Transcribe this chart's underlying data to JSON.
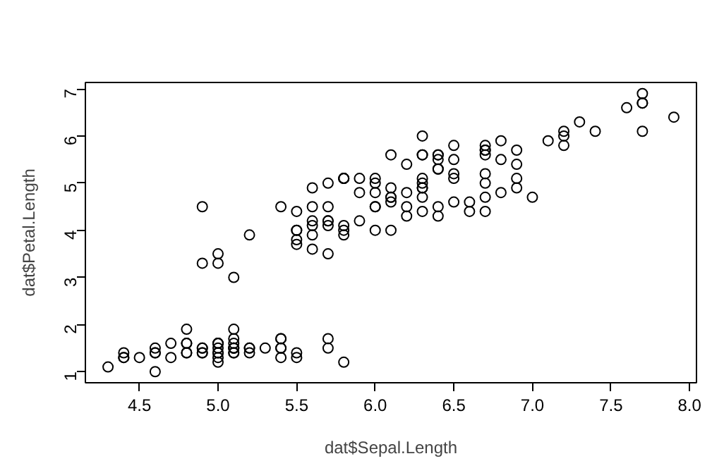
{
  "chart_data": {
    "type": "scatter",
    "xlabel": "dat$Sepal.Length",
    "ylabel": "dat$Petal.Length",
    "x": [
      5.1,
      4.9,
      4.7,
      4.6,
      5.0,
      5.4,
      4.6,
      5.0,
      4.4,
      4.9,
      5.4,
      4.8,
      4.8,
      4.3,
      5.8,
      5.7,
      5.4,
      5.1,
      5.7,
      5.1,
      5.4,
      5.1,
      4.6,
      5.1,
      4.8,
      5.0,
      5.0,
      5.2,
      5.2,
      4.7,
      4.8,
      5.4,
      5.2,
      5.5,
      4.9,
      5.0,
      5.5,
      4.9,
      4.4,
      5.1,
      5.0,
      4.5,
      4.4,
      5.0,
      5.1,
      4.8,
      5.1,
      4.6,
      5.3,
      5.0,
      7.0,
      6.4,
      6.9,
      5.5,
      6.5,
      5.7,
      6.3,
      4.9,
      6.6,
      5.2,
      5.0,
      5.9,
      6.0,
      6.1,
      5.6,
      6.7,
      5.6,
      5.8,
      6.2,
      5.6,
      5.9,
      6.1,
      6.3,
      6.1,
      6.4,
      6.6,
      6.8,
      6.7,
      6.0,
      5.7,
      5.5,
      5.5,
      5.8,
      6.0,
      5.4,
      6.0,
      6.7,
      6.3,
      5.6,
      5.5,
      5.5,
      6.1,
      5.8,
      5.0,
      5.6,
      5.7,
      5.7,
      6.2,
      5.1,
      5.7,
      6.3,
      5.8,
      7.1,
      6.3,
      6.5,
      7.6,
      4.9,
      7.3,
      6.7,
      7.2,
      6.5,
      6.4,
      6.8,
      5.7,
      5.8,
      6.4,
      6.5,
      7.7,
      7.7,
      6.0,
      6.9,
      5.6,
      7.7,
      6.3,
      6.7,
      7.2,
      6.2,
      6.1,
      6.4,
      7.2,
      7.4,
      7.9,
      6.4,
      6.3,
      6.1,
      7.7,
      6.3,
      6.4,
      6.0,
      6.9,
      6.7,
      6.9,
      5.8,
      6.8,
      6.7,
      6.7,
      6.3,
      6.5,
      6.2,
      5.9
    ],
    "values": [
      1.4,
      1.4,
      1.3,
      1.5,
      1.4,
      1.7,
      1.4,
      1.5,
      1.4,
      1.5,
      1.5,
      1.6,
      1.4,
      1.1,
      1.2,
      1.5,
      1.3,
      1.4,
      1.7,
      1.5,
      1.7,
      1.5,
      1.0,
      1.7,
      1.9,
      1.6,
      1.6,
      1.5,
      1.4,
      1.6,
      1.6,
      1.5,
      1.5,
      1.4,
      1.5,
      1.2,
      1.3,
      1.4,
      1.3,
      1.5,
      1.3,
      1.3,
      1.3,
      1.6,
      1.9,
      1.4,
      1.6,
      1.4,
      1.5,
      1.4,
      4.7,
      4.5,
      4.9,
      4.0,
      4.6,
      4.5,
      4.7,
      3.3,
      4.6,
      3.9,
      3.5,
      4.2,
      4.0,
      4.7,
      3.6,
      4.4,
      4.5,
      4.1,
      4.5,
      3.9,
      4.8,
      4.0,
      4.9,
      4.7,
      4.3,
      4.4,
      4.8,
      5.0,
      4.5,
      3.5,
      3.8,
      3.7,
      3.9,
      5.1,
      4.5,
      4.5,
      4.7,
      4.4,
      4.1,
      4.0,
      4.4,
      4.6,
      4.0,
      3.3,
      4.2,
      4.2,
      4.2,
      4.3,
      3.0,
      4.1,
      6.0,
      5.1,
      5.9,
      5.6,
      5.8,
      6.6,
      4.5,
      6.3,
      5.8,
      6.1,
      5.1,
      5.3,
      5.5,
      5.0,
      5.1,
      5.3,
      5.5,
      6.7,
      6.9,
      5.0,
      5.7,
      4.9,
      6.7,
      4.9,
      5.7,
      6.0,
      4.8,
      4.9,
      5.6,
      5.8,
      6.1,
      6.4,
      5.6,
      5.1,
      5.6,
      6.1,
      5.6,
      5.5,
      4.8,
      5.4,
      5.6,
      5.1,
      5.1,
      5.9,
      5.7,
      5.2,
      5.0,
      5.2,
      5.4,
      5.1
    ],
    "color": "#000000",
    "marker": "circle",
    "grid": false,
    "xlim": [
      4.156,
      8.044
    ],
    "ylim": [
      0.764,
      7.136
    ],
    "xticks": [
      {
        "value": 4.5,
        "label": "4.5"
      },
      {
        "value": 5.0,
        "label": "5.0"
      },
      {
        "value": 5.5,
        "label": "5.5"
      },
      {
        "value": 6.0,
        "label": "6.0"
      },
      {
        "value": 6.5,
        "label": "6.5"
      },
      {
        "value": 7.0,
        "label": "7.0"
      },
      {
        "value": 7.5,
        "label": "7.5"
      },
      {
        "value": 8.0,
        "label": "8.0"
      }
    ],
    "yticks": [
      1,
      2,
      3,
      4,
      5,
      6,
      7
    ]
  }
}
